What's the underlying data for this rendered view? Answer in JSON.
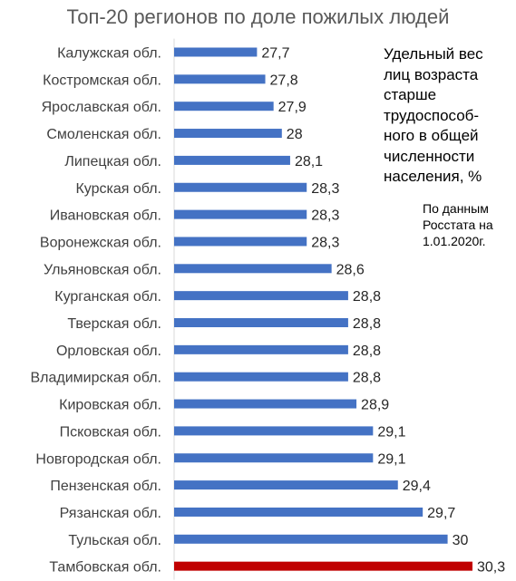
{
  "chart_data": {
    "type": "bar",
    "orientation": "horizontal",
    "title": "Топ-20 регионов по доле пожилых людей",
    "categories": [
      "Калужская обл.",
      "Костромская обл.",
      "Ярославская обл.",
      "Смоленская обл.",
      "Липецкая обл.",
      "Курская обл.",
      "Ивановская обл.",
      "Воронежская обл.",
      "Ульяновская обл.",
      "Курганская обл.",
      "Тверская обл.",
      "Орловская обл.",
      "Владимирская обл.",
      "Кировская обл.",
      "Псковская обл.",
      "Новгородская обл.",
      "Пензенская обл.",
      "Рязанская обл.",
      "Тульская обл.",
      "Тамбовская обл."
    ],
    "values": [
      27.7,
      27.8,
      27.9,
      28,
      28.1,
      28.3,
      28.3,
      28.3,
      28.6,
      28.8,
      28.8,
      28.8,
      28.8,
      28.9,
      29.1,
      29.1,
      29.4,
      29.7,
      30,
      30.3
    ],
    "value_labels": [
      "27,7",
      "27,8",
      "27,9",
      "28",
      "28,1",
      "28,3",
      "28,3",
      "28,3",
      "28,6",
      "28,8",
      "28,8",
      "28,8",
      "28,8",
      "28,9",
      "29,1",
      "29,1",
      "29,4",
      "29,7",
      "30",
      "30,3"
    ],
    "xlim": [
      26.7,
      30.3
    ],
    "colors": {
      "default": "#4472C4",
      "highlight": "#C00000"
    },
    "highlight_index": 19,
    "grid": false,
    "legend": "none"
  },
  "annotations": {
    "note": "Удельный вес\nлиц возраста\nстарше\nтрудоспособ-\nного в общей\nчисленности\nнаселения, %",
    "source": "По данным\nРосстата на\n1.01.2020г."
  }
}
